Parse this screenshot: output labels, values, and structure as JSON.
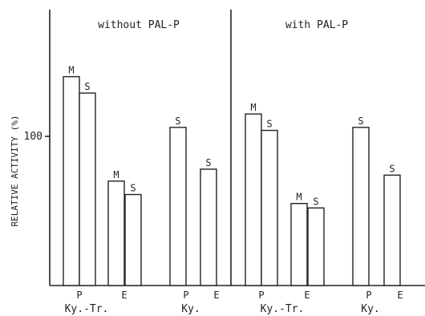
{
  "chart_data": {
    "type": "bar",
    "ylabel": "RELATIVE ACTIVITY (%)",
    "ylim": [
      0,
      155
    ],
    "yticks": [
      100
    ],
    "panels": [
      {
        "title": "without PAL-P",
        "groups": [
          {
            "name": "Ky.-Tr.",
            "categories": [
              {
                "name": "P",
                "bars": [
                  {
                    "label": "M",
                    "value": 140
                  },
                  {
                    "label": "S",
                    "value": 129
                  }
                ]
              },
              {
                "name": "E",
                "bars": [
                  {
                    "label": "M",
                    "value": 70
                  },
                  {
                    "label": "S",
                    "value": 61
                  }
                ]
              }
            ]
          },
          {
            "name": "Ky.",
            "categories": [
              {
                "name": "P",
                "bars": [
                  {
                    "label": "S",
                    "value": 106
                  }
                ]
              },
              {
                "name": "E",
                "bars": [
                  {
                    "label": "S",
                    "value": 78
                  }
                ]
              }
            ]
          }
        ]
      },
      {
        "title": "with PAL-P",
        "groups": [
          {
            "name": "Ky.-Tr.",
            "categories": [
              {
                "name": "P",
                "bars": [
                  {
                    "label": "M",
                    "value": 115
                  },
                  {
                    "label": "S",
                    "value": 104
                  }
                ]
              },
              {
                "name": "E",
                "bars": [
                  {
                    "label": "M",
                    "value": 55
                  },
                  {
                    "label": "S",
                    "value": 52
                  }
                ]
              }
            ]
          },
          {
            "name": "Ky.",
            "categories": [
              {
                "name": "P",
                "bars": [
                  {
                    "label": "S",
                    "value": 106
                  }
                ]
              },
              {
                "name": "E",
                "bars": [
                  {
                    "label": "S",
                    "value": 74
                  }
                ]
              }
            ]
          }
        ]
      }
    ]
  }
}
